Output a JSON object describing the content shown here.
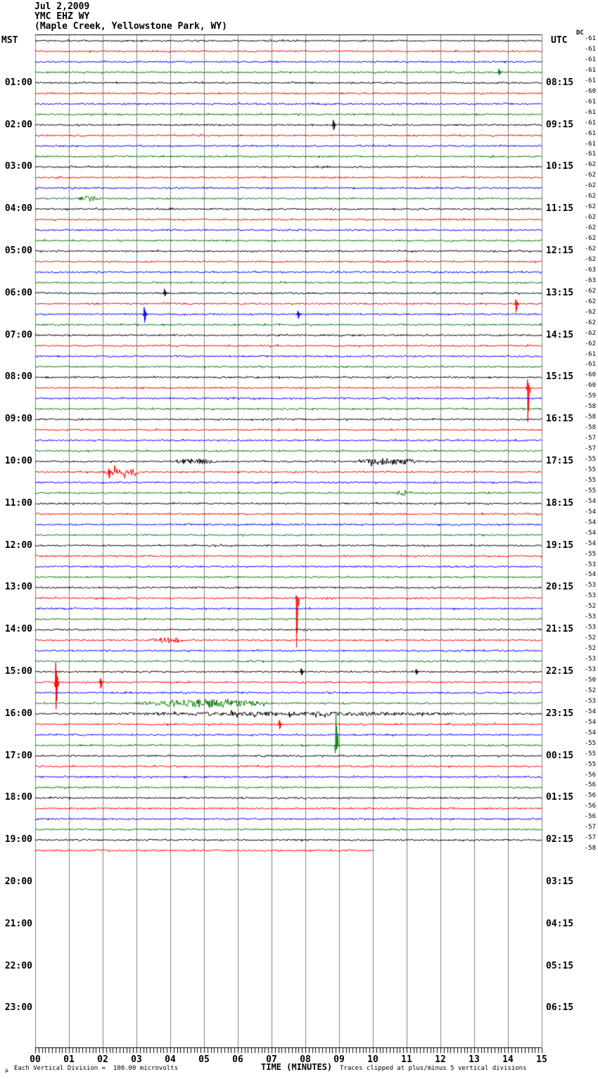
{
  "header": {
    "date": "Jul 2,2009",
    "station": "YMC EHZ WY",
    "location": "(Maple Creek, Yellowstone Park, WY)"
  },
  "axes": {
    "left_label": "MST",
    "right_label": "UTC",
    "dc_label": "DC",
    "x_axis_title": "TIME (MINUTES)",
    "minute_labels": [
      "00",
      "01",
      "02",
      "03",
      "04",
      "05",
      "06",
      "07",
      "08",
      "09",
      "10",
      "11",
      "12",
      "13",
      "14",
      "15"
    ],
    "mst_labels": [
      "01:00",
      "02:00",
      "03:00",
      "04:00",
      "05:00",
      "06:00",
      "07:00",
      "08:00",
      "09:00",
      "10:00",
      "11:00",
      "12:00",
      "13:00",
      "14:00",
      "15:00",
      "16:00",
      "17:00",
      "18:00",
      "19:00",
      "20:00",
      "21:00",
      "22:00",
      "23:00"
    ],
    "utc_labels": [
      "08:15",
      "09:15",
      "10:15",
      "11:15",
      "12:15",
      "13:15",
      "14:15",
      "15:15",
      "16:15",
      "17:15",
      "18:15",
      "19:15",
      "20:15",
      "21:15",
      "22:15",
      "23:15",
      "00:15",
      "01:15",
      "02:15",
      "03:15",
      "04:15",
      "05:15",
      "06:15"
    ]
  },
  "footer": {
    "left_note": "Each Vertical Division =  100.00 microvolts",
    "right_note": "Traces clipped at plus/minus 5 vertical divisions",
    "mu_glyph": "µ"
  },
  "colors": {
    "background": "#ffffff",
    "grid": "#808080",
    "text": "#000000",
    "trace_cycle": [
      "#000000",
      "#ff0000",
      "#0000ff",
      "#007700"
    ]
  },
  "chart_data": {
    "type": "line",
    "subtype": "helicorder-seismogram",
    "title": "YMC EHZ WY (Maple Creek, Yellowstone Park, WY) Jul 2,2009",
    "xlabel": "TIME (MINUTES)",
    "x_range_minutes": [
      0,
      15
    ],
    "traces_per_hour": 4,
    "minutes_per_trace": 15,
    "trace_count": 78,
    "first_trace_start_mst": "00:00",
    "last_trace_start_mst": "19:15",
    "last_trace_partial_minutes": 10,
    "clip_note": "Traces clipped at plus/minus 5 vertical divisions",
    "vertical_division_microvolts": 100.0,
    "dc_offsets": [
      -61,
      -61,
      -61,
      -61,
      -61,
      -60,
      -61,
      -61,
      -61,
      -61,
      -61,
      -61,
      -62,
      -62,
      -62,
      -62,
      -62,
      -62,
      -62,
      -62,
      -62,
      -62,
      -63,
      -63,
      -62,
      -62,
      -62,
      -62,
      -62,
      -62,
      -61,
      -61,
      -60,
      -60,
      -59,
      -58,
      -58,
      -58,
      -57,
      -57,
      -55,
      -55,
      -55,
      -55,
      -54,
      -54,
      -54,
      -54,
      -54,
      -55,
      -53,
      -54,
      -53,
      -53,
      -52,
      -53,
      -53,
      -52,
      -52,
      -53,
      -53,
      -50,
      -52,
      -53,
      -54,
      -54,
      -54,
      -55,
      -55,
      -55,
      -56,
      -56,
      -56,
      -56,
      -56,
      -57,
      -57,
      -58
    ],
    "events": [
      {
        "trace": 3,
        "type": "spike",
        "minute": 13.75,
        "up": 5,
        "down": 4
      },
      {
        "trace": 8,
        "type": "spike",
        "minute": 8.85,
        "up": 7,
        "down": 7
      },
      {
        "trace": 15,
        "type": "burst",
        "minute": 1.6,
        "duration": 0.9,
        "amp": 4
      },
      {
        "trace": 24,
        "type": "spike",
        "minute": 3.85,
        "up": 6,
        "down": 4
      },
      {
        "trace": 25,
        "type": "spike",
        "minute": 14.25,
        "up": 6,
        "down": 13
      },
      {
        "trace": 26,
        "type": "spike",
        "minute": 3.25,
        "up": 10,
        "down": 12
      },
      {
        "trace": 26,
        "type": "spike",
        "minute": 7.8,
        "up": 5,
        "down": 6
      },
      {
        "trace": 33,
        "type": "spike",
        "minute": 14.6,
        "up": 12,
        "down": 48
      },
      {
        "trace": 40,
        "type": "burst",
        "minute": 4.7,
        "duration": 1.8,
        "amp": 4
      },
      {
        "trace": 40,
        "type": "burst",
        "minute": 10.5,
        "duration": 2.2,
        "amp": 5
      },
      {
        "trace": 41,
        "type": "burst",
        "minute": 2.6,
        "duration": 1.4,
        "amp": 6
      },
      {
        "trace": 41,
        "type": "spike",
        "minute": 2.2,
        "up": 5,
        "down": 9
      },
      {
        "trace": 43,
        "type": "burst",
        "minute": 10.9,
        "duration": 0.7,
        "amp": 4
      },
      {
        "trace": 53,
        "type": "spike",
        "minute": 7.75,
        "up": 4,
        "down": 70
      },
      {
        "trace": 57,
        "type": "burst",
        "minute": 3.9,
        "duration": 1.2,
        "amp": 5
      },
      {
        "trace": 60,
        "type": "spike",
        "minute": 7.9,
        "up": 5,
        "down": 5
      },
      {
        "trace": 60,
        "type": "spike",
        "minute": 11.3,
        "up": 4,
        "down": 4
      },
      {
        "trace": 61,
        "type": "spike",
        "minute": 0.63,
        "up": 28,
        "down": 38
      },
      {
        "trace": 61,
        "type": "spike",
        "minute": 1.95,
        "up": 6,
        "down": 9
      },
      {
        "trace": 63,
        "type": "burst",
        "minute": 5.0,
        "duration": 4.6,
        "amp": 6
      },
      {
        "trace": 64,
        "type": "burst",
        "minute": 7.5,
        "duration": 15,
        "amp": 3
      },
      {
        "trace": 65,
        "type": "spike",
        "minute": 7.25,
        "up": 6,
        "down": 7
      },
      {
        "trace": 67,
        "type": "spike",
        "minute": 8.93,
        "up": 45,
        "down": 6
      }
    ]
  }
}
